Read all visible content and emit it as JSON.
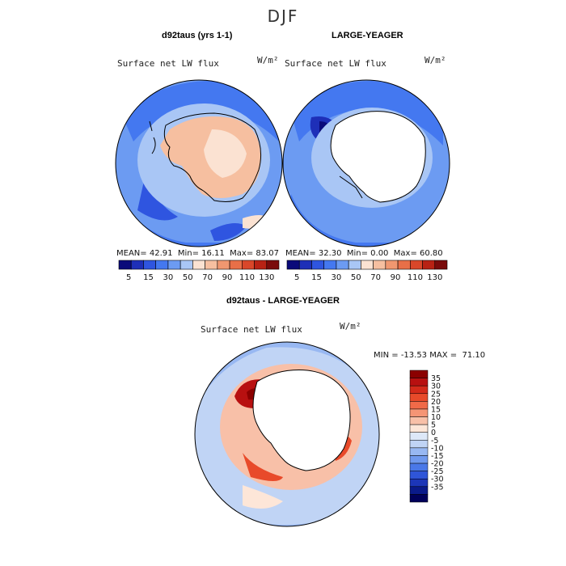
{
  "figure": {
    "title": "DJF"
  },
  "chart_data": [
    {
      "type": "heatmap",
      "map": "south-polar-stereographic",
      "title": "d92taus (yrs 1-1)",
      "field": "Surface net LW flux",
      "units": "W/m²",
      "stats": {
        "mean_label": "MEAN=",
        "mean": "42.91",
        "min_label": "Min=",
        "min": "16.11",
        "max_label": "Max=",
        "max": "83.07"
      },
      "colorbar": {
        "orientation": "horizontal",
        "colors": [
          "#0a0a7a",
          "#1e2fb8",
          "#2f55e0",
          "#4478f0",
          "#6c9bf2",
          "#a9c6f5",
          "#fbe2d2",
          "#f6bfa0",
          "#f09770",
          "#e86f48",
          "#d9472a",
          "#b82214",
          "#7a0b0b"
        ],
        "tick_labels": [
          "5",
          "15",
          "30",
          "50",
          "70",
          "90",
          "110",
          "130"
        ]
      }
    },
    {
      "type": "heatmap",
      "map": "south-polar-stereographic",
      "title": "LARGE-YEAGER",
      "field": "Surface net LW flux",
      "units": "W/m²",
      "stats": {
        "mean_label": "MEAN=",
        "mean": "32.30",
        "min_label": "Min=",
        "min": "0.00",
        "max_label": "Max=",
        "max": "60.80"
      },
      "colorbar": {
        "orientation": "horizontal",
        "colors": [
          "#0a0a7a",
          "#1e2fb8",
          "#2f55e0",
          "#4478f0",
          "#6c9bf2",
          "#a9c6f5",
          "#fbe2d2",
          "#f6bfa0",
          "#f09770",
          "#e86f48",
          "#d9472a",
          "#b82214",
          "#7a0b0b"
        ],
        "tick_labels": [
          "5",
          "15",
          "30",
          "50",
          "70",
          "90",
          "110",
          "130"
        ]
      }
    },
    {
      "type": "heatmap",
      "map": "south-polar-stereographic",
      "title": "d92taus - LARGE-YEAGER",
      "field": "Surface net LW flux",
      "units": "W/m²",
      "stats": {
        "min_label": "MIN =",
        "min": "-13.53",
        "max_label": "MAX =",
        "max": "71.10"
      },
      "colorbar": {
        "orientation": "vertical",
        "colors": [
          "#8b0000",
          "#b81010",
          "#d42a1a",
          "#e84a2a",
          "#f06a48",
          "#f59575",
          "#f8c0a8",
          "#fde6d8",
          "#dde8f8",
          "#c0d4f5",
          "#98b8f2",
          "#7099ee",
          "#4a78e8",
          "#2f55d8",
          "#1c36b8",
          "#0a1a8a",
          "#00005a"
        ],
        "tick_labels": [
          "35",
          "30",
          "25",
          "20",
          "15",
          "10",
          "5",
          "0",
          "-5",
          "-10",
          "-15",
          "-20",
          "-25",
          "-30",
          "-35"
        ]
      }
    }
  ]
}
